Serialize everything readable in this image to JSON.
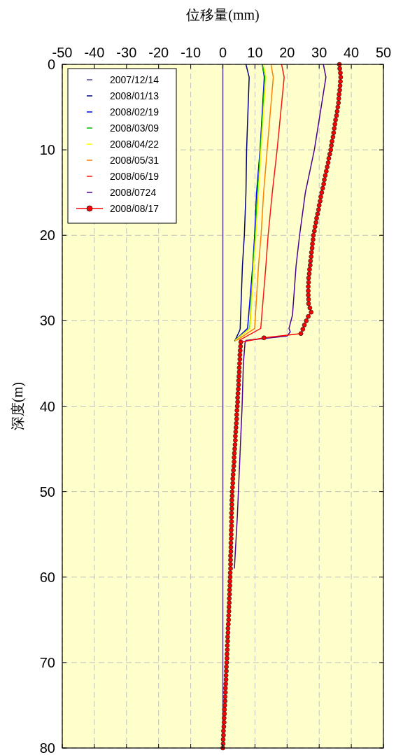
{
  "chart_data": {
    "type": "line",
    "xlabel": "位移量(mm)",
    "ylabel": "深度(m)",
    "xlim": [
      -50,
      50
    ],
    "xticks": [
      -50,
      -40,
      -30,
      -20,
      -10,
      0,
      10,
      20,
      30,
      40,
      50
    ],
    "ylim": [
      80,
      0
    ],
    "yticks": [
      0,
      10,
      20,
      30,
      40,
      50,
      60,
      70,
      80
    ],
    "grid": true,
    "legend": "top left",
    "line_style": "solid",
    "series": [
      {
        "name": "2007/12/14",
        "color": "#5a3c96",
        "x": [
          0,
          0
        ],
        "values": [
          0,
          80
        ]
      },
      {
        "name": "2008/01/13",
        "color": "#000080",
        "x": [
          7.2,
          8.2,
          7.4,
          7.2,
          6.7,
          6.1,
          5.4,
          5.3,
          3.7
        ],
        "values": [
          0,
          1.5,
          10,
          15,
          20,
          23.6,
          30.9,
          31.1,
          32.4
        ]
      },
      {
        "name": "2008/02/19",
        "color": "#0000ff",
        "x": [
          12.3,
          12.9,
          11.6,
          10.5,
          9.9,
          9.3,
          7.7,
          3.8
        ],
        "values": [
          0,
          1.5,
          10,
          15,
          20,
          23.6,
          30.9,
          32.3
        ]
      },
      {
        "name": "2008/03/09",
        "color": "#00c000",
        "x": [
          12.3,
          13.1,
          11.7,
          10.8,
          10.1,
          9.4,
          8.4,
          3.8
        ],
        "values": [
          0,
          1.5,
          10,
          15,
          20,
          23.6,
          30.9,
          32.3
        ]
      },
      {
        "name": "2008/04/22",
        "color": "#ffff00",
        "x": [
          12.7,
          13.4,
          11.9,
          11.1,
          10.3,
          9.6,
          8.5,
          3.8
        ],
        "values": [
          0,
          1.5,
          10,
          15,
          20,
          23.6,
          30.9,
          32.3
        ]
      },
      {
        "name": "2008/05/31",
        "color": "#ff8000",
        "x": [
          15.0,
          15.7,
          13.8,
          12.7,
          11.9,
          11.1,
          9.9,
          4.3
        ],
        "values": [
          0,
          1.5,
          10,
          15,
          20,
          23.6,
          30.9,
          32.3
        ]
      },
      {
        "name": "2008/06/19",
        "color": "#f81818",
        "x": [
          18.3,
          19.1,
          16.9,
          15.4,
          14.1,
          13.4,
          11.8,
          5.1
        ],
        "values": [
          0,
          1.5,
          10,
          15,
          20,
          23.6,
          30.9,
          32.3
        ]
      },
      {
        "name": "2008/0724",
        "color": "#4b0096",
        "x": [
          31.3,
          32.1,
          28.5,
          25.7,
          23.9,
          22.8,
          21.7,
          20.6,
          21.0,
          20.0,
          7.2,
          6.9,
          6.4,
          6.0,
          4.5,
          3.6
        ],
        "values": [
          0,
          1.5,
          10,
          15,
          20,
          23.6,
          29.3,
          30.9,
          31.3,
          31.8,
          32.3,
          32.6,
          35,
          40,
          53,
          59
        ]
      },
      {
        "name": "2008/08/17",
        "color": "#ff0000",
        "marker": "circle",
        "x": [
          36.3,
          36.4,
          36.6,
          36.7,
          36.6,
          36.5,
          36.4,
          36.2,
          36.1,
          36.0,
          35.8,
          35.6,
          35.4,
          35.1,
          34.9,
          34.7,
          34.5,
          34.3,
          34.0,
          33.8,
          33.6,
          33.3,
          33.0,
          32.8,
          32.5,
          32.2,
          31.9,
          31.6,
          31.4,
          31.1,
          30.8,
          30.5,
          30.3,
          30.0,
          29.8,
          29.5,
          29.2,
          29.0,
          28.7,
          28.5,
          28.2,
          28.1,
          27.9,
          27.8,
          27.6,
          27.5,
          27.3,
          27.2,
          27.0,
          26.9,
          26.7,
          26.7,
          26.6,
          26.6,
          26.6,
          26.7,
          26.7,
          27.1,
          27.5,
          26.6,
          26.0,
          25.4,
          24.9,
          24.3,
          12.8,
          5.6,
          5.5,
          5.4,
          5.3,
          5.3,
          5.2,
          5.1,
          5.1,
          5.0,
          4.9,
          4.9,
          4.8,
          4.7,
          4.6,
          4.6,
          4.5,
          4.4,
          4.3,
          4.3,
          4.2,
          4.1,
          4.0,
          3.9,
          3.9,
          3.8,
          3.7,
          3.6,
          3.5,
          3.5,
          3.4,
          3.3,
          3.2,
          3.1,
          3.1,
          3.0,
          2.9,
          2.9,
          2.8,
          2.8,
          2.8,
          2.7,
          2.7,
          2.7,
          2.7,
          2.6,
          2.6,
          2.6,
          2.5,
          2.5,
          2.5,
          2.4,
          2.4,
          2.4,
          2.4,
          2.3,
          2.3,
          2.2,
          2.2,
          2.1,
          2.1,
          2.0,
          2.0,
          1.9,
          1.9,
          1.8,
          1.8,
          1.7,
          1.6,
          1.6,
          1.5,
          1.5,
          1.4,
          1.4,
          1.3,
          1.3,
          1.2,
          1.1,
          1.1,
          1.0,
          1.0,
          0.9,
          0.8,
          0.8,
          0.7,
          0.7,
          0.6,
          0.5,
          0.5,
          0.4,
          0.4,
          0.3,
          0.2,
          0.2,
          0.1,
          0.1,
          0
        ],
        "values": [
          0,
          0.5,
          1,
          1.5,
          2,
          2.5,
          3,
          3.5,
          4,
          4.5,
          5,
          5.5,
          6,
          6.5,
          7,
          7.5,
          8,
          8.5,
          9,
          9.5,
          10,
          10.5,
          11,
          11.5,
          12,
          12.5,
          13,
          13.5,
          14,
          14.5,
          15,
          15.5,
          16,
          16.5,
          17,
          17.5,
          18,
          18.5,
          19,
          19.5,
          20,
          20.5,
          21,
          21.5,
          22,
          22.5,
          23,
          23.5,
          24,
          24.5,
          25,
          25.5,
          26,
          26.5,
          27,
          27.5,
          28,
          28.5,
          29,
          29.5,
          30,
          30.5,
          31,
          31.5,
          32,
          32.5,
          33,
          33.5,
          34,
          34.5,
          35,
          35.5,
          36,
          36.5,
          37,
          37.5,
          38,
          38.5,
          39,
          39.5,
          40,
          40.5,
          41,
          41.5,
          42,
          42.5,
          43,
          43.5,
          44,
          44.5,
          45,
          45.5,
          46,
          46.5,
          47,
          47.5,
          48,
          48.5,
          49,
          49.5,
          50,
          50.5,
          51,
          51.5,
          52,
          52.5,
          53,
          53.5,
          54,
          54.5,
          55,
          55.5,
          56,
          56.5,
          57,
          57.5,
          58,
          58.5,
          59,
          59.5,
          60,
          60.5,
          61,
          61.5,
          62,
          62.5,
          63,
          63.5,
          64,
          64.5,
          65,
          65.5,
          66,
          66.5,
          67,
          67.5,
          68,
          68.5,
          69,
          69.5,
          70,
          70.5,
          71,
          71.5,
          72,
          72.5,
          73,
          73.5,
          74,
          74.5,
          75,
          75.5,
          76,
          76.5,
          77,
          77.5,
          78,
          78.5,
          79,
          79.5,
          80
        ]
      }
    ]
  }
}
